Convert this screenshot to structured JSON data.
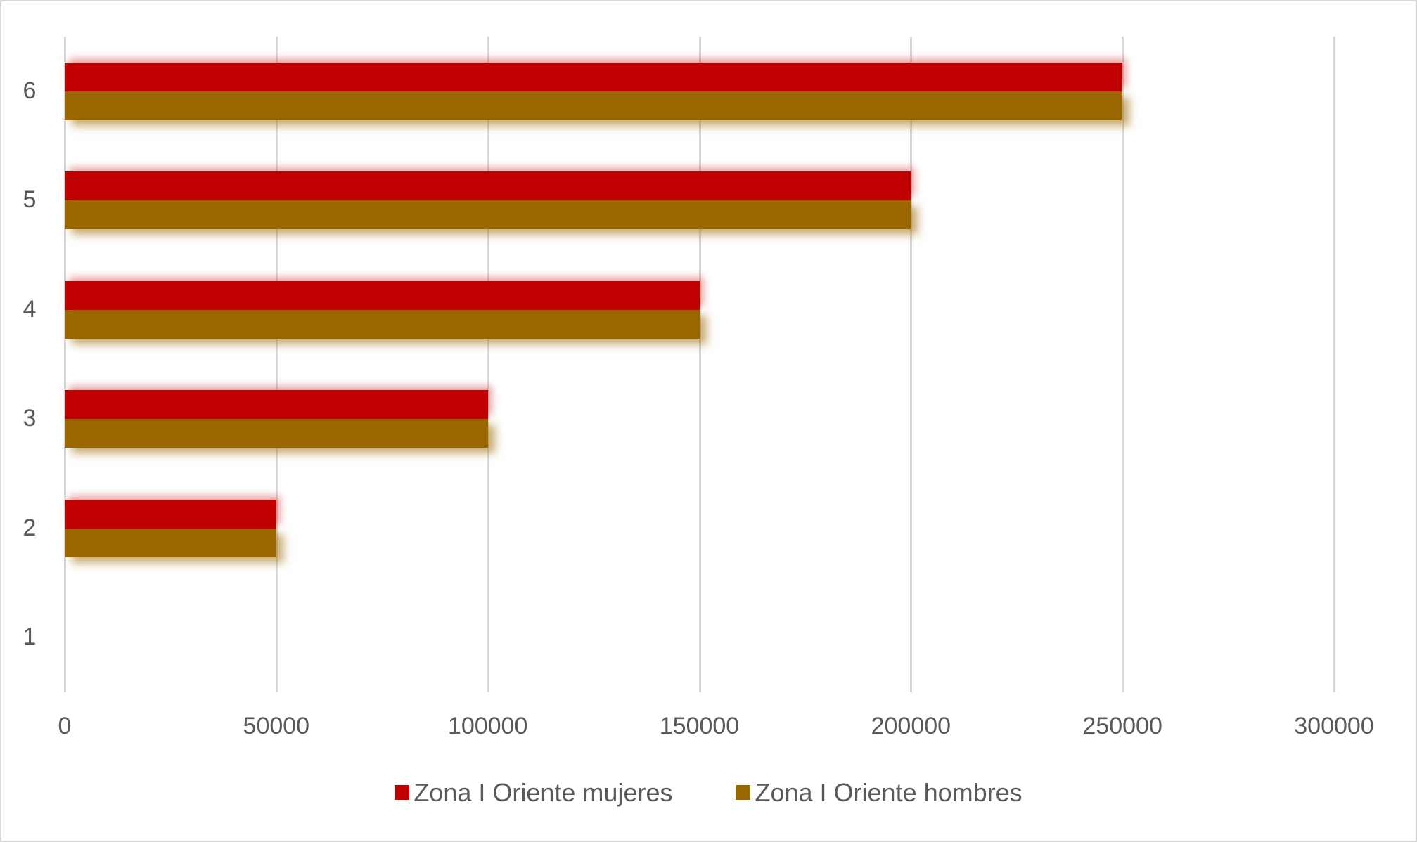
{
  "chart_data": {
    "type": "bar",
    "orientation": "horizontal",
    "title": "",
    "xlabel": "",
    "ylabel": "",
    "categories": [
      "1",
      "2",
      "3",
      "4",
      "5",
      "6"
    ],
    "series": [
      {
        "name": "Zona I Oriente  mujeres",
        "color": "#c00000",
        "values": [
          0,
          50000,
          100000,
          150000,
          200000,
          250000
        ]
      },
      {
        "name": "Zona I Oriente  hombres",
        "color": "#996600",
        "values": [
          0,
          50000,
          100000,
          150000,
          200000,
          250000
        ]
      }
    ],
    "xlim": [
      0,
      300000
    ],
    "x_ticks": [
      "0",
      "50000",
      "100000",
      "150000",
      "200000",
      "250000",
      "300000"
    ],
    "grid": "vertical major gridlines",
    "legend_position": "bottom"
  },
  "legend": {
    "items": [
      {
        "label": "Zona I Oriente  mujeres",
        "color": "#c00000"
      },
      {
        "label": "Zona I Oriente  hombres",
        "color": "#996600"
      }
    ]
  }
}
